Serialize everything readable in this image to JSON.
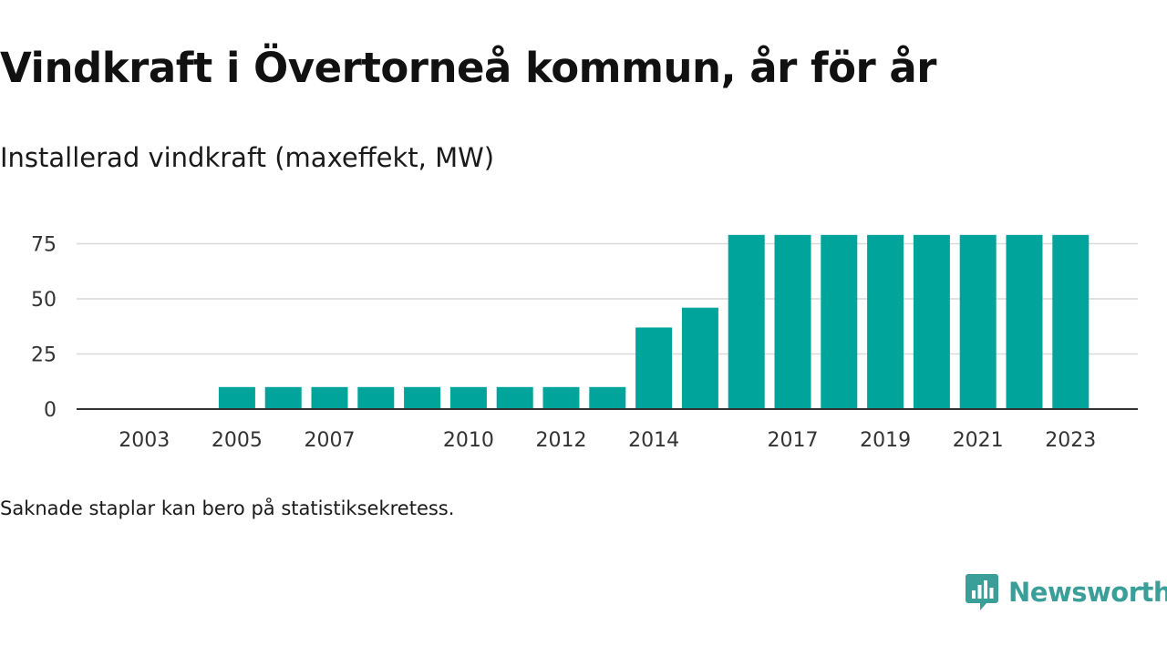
{
  "title": "Vindkraft i Övertorneå kommun, år för år",
  "subtitle": "Installerad vindkraft (maxeffekt, MW)",
  "footnote": "Saknade staplar kan bero på statistiksekretess.",
  "brand": {
    "name": "Newsworthy",
    "icon": "newsworthy-logo-icon",
    "color": "#3a9e99"
  },
  "colors": {
    "bar": "#00a49a",
    "grid": "#d9d9d9",
    "axis": "#333333",
    "text": "#333333"
  },
  "chart_data": {
    "type": "bar",
    "categories": [
      "2002",
      "2003",
      "2004",
      "2005",
      "2006",
      "2007",
      "2008",
      "2009",
      "2010",
      "2011",
      "2012",
      "2013",
      "2014",
      "2015",
      "2016",
      "2017",
      "2018",
      "2019",
      "2020",
      "2021",
      "2022",
      "2023"
    ],
    "values": [
      null,
      null,
      null,
      10,
      10,
      10,
      10,
      10,
      10,
      10,
      10,
      10,
      37,
      46,
      79,
      79,
      79,
      79,
      79,
      79,
      79,
      79
    ],
    "x_tick_labels": [
      "2003",
      "2005",
      "2007",
      "2010",
      "2012",
      "2014",
      "2017",
      "2019",
      "2021",
      "2023"
    ],
    "y_ticks": [
      0,
      25,
      50,
      75
    ],
    "ylim": [
      0,
      80
    ],
    "grid": true,
    "legend": "none",
    "xlabel": "",
    "ylabel": ""
  }
}
